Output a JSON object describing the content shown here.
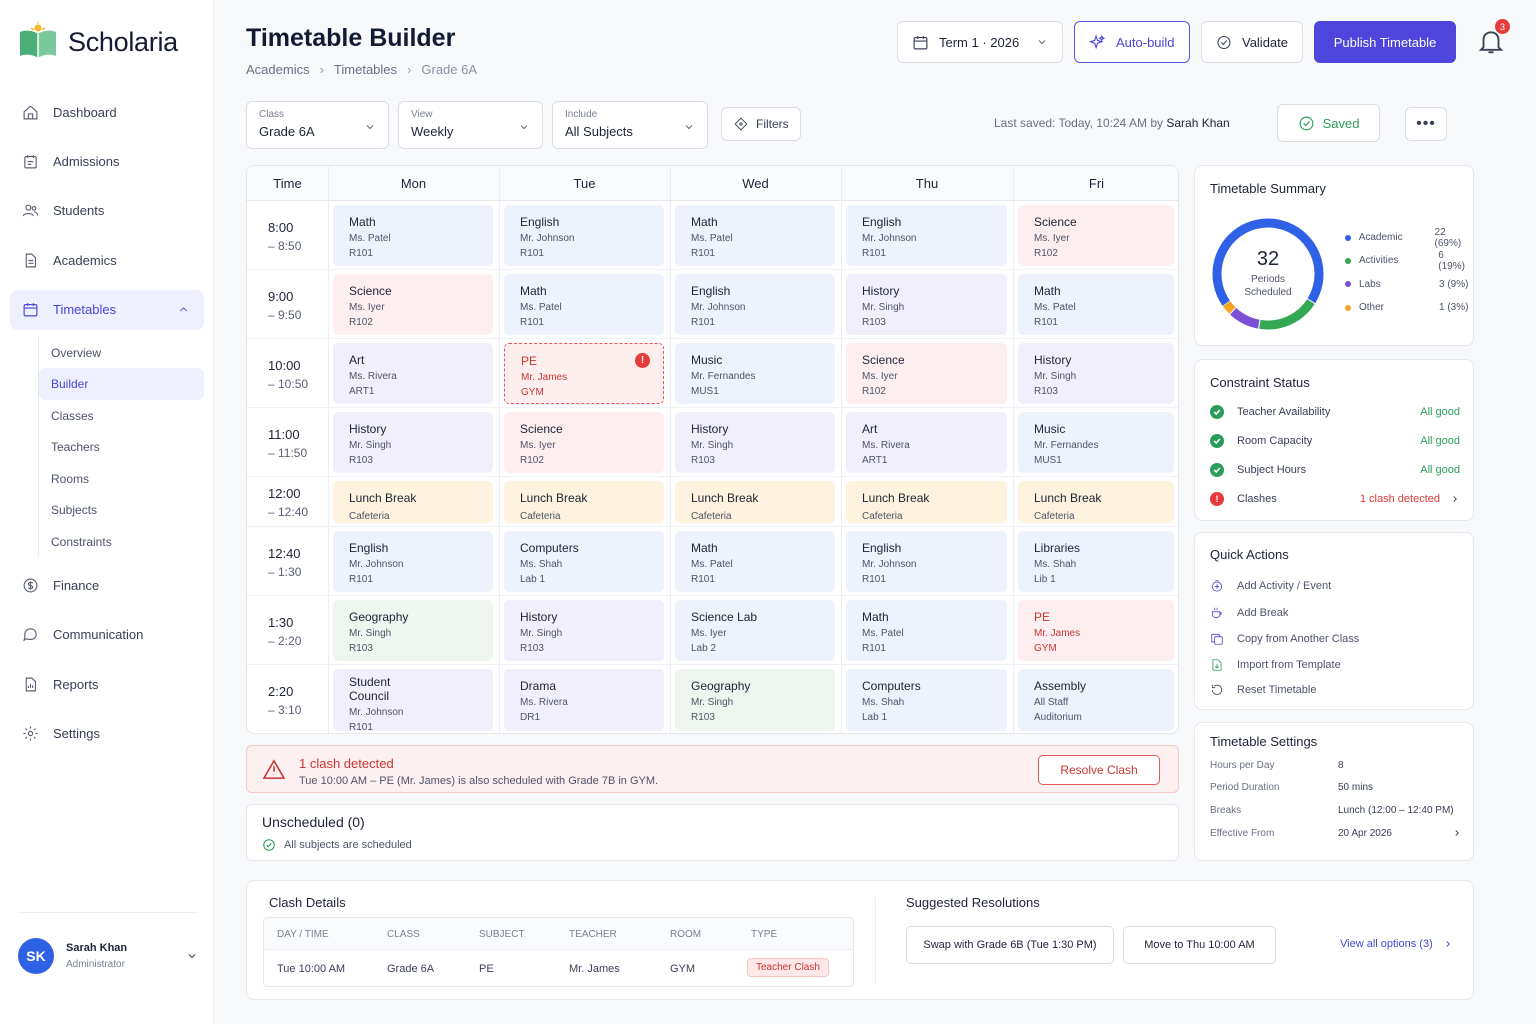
{
  "app": {
    "name": "Scholaria"
  },
  "sidebar": {
    "items": [
      {
        "label": "Dashboard",
        "icon": "home-icon"
      },
      {
        "label": "Admissions",
        "icon": "calendar-list-icon"
      },
      {
        "label": "Students",
        "icon": "users-icon"
      },
      {
        "label": "Academics",
        "icon": "document-icon"
      },
      {
        "label": "Timetables",
        "icon": "calendar-icon"
      },
      {
        "label": "Finance",
        "icon": "dollar-icon"
      },
      {
        "label": "Communication",
        "icon": "chat-icon"
      },
      {
        "label": "Reports",
        "icon": "report-icon"
      },
      {
        "label": "Settings",
        "icon": "gear-icon"
      }
    ],
    "sub": [
      "Overview",
      "Builder",
      "Classes",
      "Teachers",
      "Rooms",
      "Subjects",
      "Constraints"
    ]
  },
  "user": {
    "initials": "SK",
    "name": "Sarah Khan",
    "role": "Administrator"
  },
  "header": {
    "title": "Timetable Builder",
    "breadcrumb": [
      "Academics",
      "Timetables",
      "Grade 6A"
    ],
    "term": "Term 1 · 2026",
    "auto": "Auto-build",
    "validate": "Validate",
    "publish": "Publish Timetable",
    "notifications": "3"
  },
  "toolbar": {
    "class": {
      "label": "Class",
      "value": "Grade 6A"
    },
    "view": {
      "label": "View",
      "value": "Weekly"
    },
    "include": {
      "label": "Include",
      "value": "All Subjects"
    },
    "filters": "Filters",
    "saved_prefix": "Last saved: Today, 10:24 AM by ",
    "saved_by": "Sarah Khan",
    "saved": "Saved",
    "more": "•••"
  },
  "timetable": {
    "time_header": "Time",
    "days": [
      "Mon",
      "Tue",
      "Wed",
      "Thu",
      "Fri"
    ],
    "rows": [
      {
        "start": "8:00",
        "end": "– 8:50",
        "cells": [
          {
            "s": "Math",
            "t": "Ms. Patel",
            "r": "R101",
            "c": "blue"
          },
          {
            "s": "English",
            "t": "Mr. Johnson",
            "r": "R101",
            "c": "blue"
          },
          {
            "s": "Math",
            "t": "Ms. Patel",
            "r": "R101",
            "c": "blue"
          },
          {
            "s": "English",
            "t": "Mr. Johnson",
            "r": "R101",
            "c": "blue"
          },
          {
            "s": "Science",
            "t": "Ms. Iyer",
            "r": "R102",
            "c": "pink"
          }
        ]
      },
      {
        "start": "9:00",
        "end": "– 9:50",
        "cells": [
          {
            "s": "Science",
            "t": "Ms. Iyer",
            "r": "R102",
            "c": "pink"
          },
          {
            "s": "Math",
            "t": "Ms. Patel",
            "r": "R101",
            "c": "blue"
          },
          {
            "s": "English",
            "t": "Mr. Johnson",
            "r": "R101",
            "c": "blue"
          },
          {
            "s": "History",
            "t": "Mr. Singh",
            "r": "R103",
            "c": "purple"
          },
          {
            "s": "Math",
            "t": "Ms. Patel",
            "r": "R101",
            "c": "blue"
          }
        ]
      },
      {
        "start": "10:00",
        "end": "– 10:50",
        "cells": [
          {
            "s": "Art",
            "t": "Ms. Rivera",
            "r": "ART1",
            "c": "purple"
          },
          {
            "s": "PE",
            "t": "Mr. James",
            "r": "GYM",
            "c": "clash"
          },
          {
            "s": "Music",
            "t": "Mr. Fernandes",
            "r": "MUS1",
            "c": "blue"
          },
          {
            "s": "Science",
            "t": "Ms. Iyer",
            "r": "R102",
            "c": "pink"
          },
          {
            "s": "History",
            "t": "Mr. Singh",
            "r": "R103",
            "c": "purple"
          }
        ]
      },
      {
        "start": "11:00",
        "end": "– 11:50",
        "cells": [
          {
            "s": "History",
            "t": "Mr. Singh",
            "r": "R103",
            "c": "purple"
          },
          {
            "s": "Science",
            "t": "Ms. Iyer",
            "r": "R102",
            "c": "pink"
          },
          {
            "s": "History",
            "t": "Mr. Singh",
            "r": "R103",
            "c": "purple"
          },
          {
            "s": "Art",
            "t": "Ms. Rivera",
            "r": "ART1",
            "c": "purple"
          },
          {
            "s": "Music",
            "t": "Mr. Fernandes",
            "r": "MUS1",
            "c": "blue"
          }
        ]
      },
      {
        "start": "12:00",
        "end": "– 12:40",
        "lunch": true,
        "cells": [
          {
            "s": "Lunch Break",
            "t": "Cafeteria",
            "c": "yellow"
          },
          {
            "s": "Lunch Break",
            "t": "Cafeteria",
            "c": "yellow"
          },
          {
            "s": "Lunch Break",
            "t": "Cafeteria",
            "c": "yellow"
          },
          {
            "s": "Lunch Break",
            "t": "Cafeteria",
            "c": "yellow"
          },
          {
            "s": "Lunch Break",
            "t": "Cafeteria",
            "c": "yellow"
          }
        ]
      },
      {
        "start": "12:40",
        "end": "– 1:30",
        "cells": [
          {
            "s": "English",
            "t": "Mr. Johnson",
            "r": "R101",
            "c": "blue"
          },
          {
            "s": "Computers",
            "t": "Ms. Shah",
            "r": "Lab 1",
            "c": "blue"
          },
          {
            "s": "Math",
            "t": "Ms. Patel",
            "r": "R101",
            "c": "blue"
          },
          {
            "s": "English",
            "t": "Mr. Johnson",
            "r": "R101",
            "c": "blue"
          },
          {
            "s": "Libraries",
            "t": "Ms. Shah",
            "r": "Lib 1",
            "c": "blue"
          }
        ]
      },
      {
        "start": "1:30",
        "end": "– 2:20",
        "cells": [
          {
            "s": "Geography",
            "t": "Mr. Singh",
            "r": "R103",
            "c": "green"
          },
          {
            "s": "History",
            "t": "Mr. Singh",
            "r": "R103",
            "c": "purple"
          },
          {
            "s": "Science Lab",
            "t": "Ms. Iyer",
            "r": "Lab 2",
            "c": "blue"
          },
          {
            "s": "Math",
            "t": "Ms. Patel",
            "r": "R101",
            "c": "blue"
          },
          {
            "s": "PE",
            "t": "Mr. James",
            "r": "GYM",
            "c": "pink",
            "pe": true
          }
        ]
      },
      {
        "start": "2:20",
        "end": "– 3:10",
        "cells": [
          {
            "s": "Student Council",
            "t": "Mr. Johnson",
            "r": "R101",
            "c": "purple"
          },
          {
            "s": "Drama",
            "t": "Ms. Rivera",
            "r": "DR1",
            "c": "purple"
          },
          {
            "s": "Geography",
            "t": "Mr. Singh",
            "r": "R103",
            "c": "green"
          },
          {
            "s": "Computers",
            "t": "Ms. Shah",
            "r": "Lab 1",
            "c": "blue"
          },
          {
            "s": "Assembly",
            "t": "All Staff",
            "r": "Auditorium",
            "c": "blue"
          }
        ]
      }
    ]
  },
  "alert": {
    "title": "1 clash detected",
    "detail": "Tue 10:00 AM – PE (Mr. James) is also scheduled with Grade 7B in GYM.",
    "action": "Resolve Clash"
  },
  "unscheduled": {
    "title": "Unscheduled  (0)",
    "detail": "All subjects are scheduled"
  },
  "summary": {
    "title": "Timetable Summary",
    "total": "32",
    "total_label_1": "Periods",
    "total_label_2": "Scheduled",
    "legend": [
      {
        "label": "Academic",
        "value": "22 (69%)",
        "color": "#2f61e6",
        "count": 22
      },
      {
        "label": "Activities",
        "value": "6 (19%)",
        "color": "#34a853",
        "count": 6
      },
      {
        "label": "Labs",
        "value": "3 (9%)",
        "color": "#7b4fd6",
        "count": 3
      },
      {
        "label": "Other",
        "value": "1 (3%)",
        "color": "#f5a524",
        "count": 1
      }
    ]
  },
  "constraints": {
    "title": "Constraint Status",
    "items": [
      {
        "label": "Teacher Availability",
        "status": "All good",
        "ok": true
      },
      {
        "label": "Room Capacity",
        "status": "All good",
        "ok": true
      },
      {
        "label": "Subject Hours",
        "status": "All good",
        "ok": true
      },
      {
        "label": "Clashes",
        "status": "1 clash detected",
        "ok": false
      }
    ]
  },
  "quick": {
    "title": "Quick Actions",
    "items": [
      "Add Activity / Event",
      "Add Break",
      "Copy from Another Class",
      "Import from Template",
      "Reset Timetable"
    ]
  },
  "settings": {
    "title": "Timetable Settings",
    "items": [
      {
        "k": "Hours per Day",
        "v": "8"
      },
      {
        "k": "Period Duration",
        "v": "50 mins"
      },
      {
        "k": "Breaks",
        "v": "Lunch (12:00 – 12:40 PM)"
      },
      {
        "k": "Effective From",
        "v": "20 Apr 2026"
      }
    ]
  },
  "clash_details": {
    "title": "Clash Details",
    "headers": [
      "DAY / TIME",
      "CLASS",
      "SUBJECT",
      "TEACHER",
      "ROOM",
      "TYPE"
    ],
    "row": [
      "Tue 10:00 AM",
      "Grade 6A",
      "PE",
      "Mr. James",
      "GYM",
      "Teacher Clash"
    ]
  },
  "resolutions": {
    "title": "Suggested Resolutions",
    "options": [
      "Swap with Grade 6B (Tue 1:30 PM)",
      "Move to Thu 10:00 AM"
    ],
    "view_all": "View all options  (3)"
  }
}
